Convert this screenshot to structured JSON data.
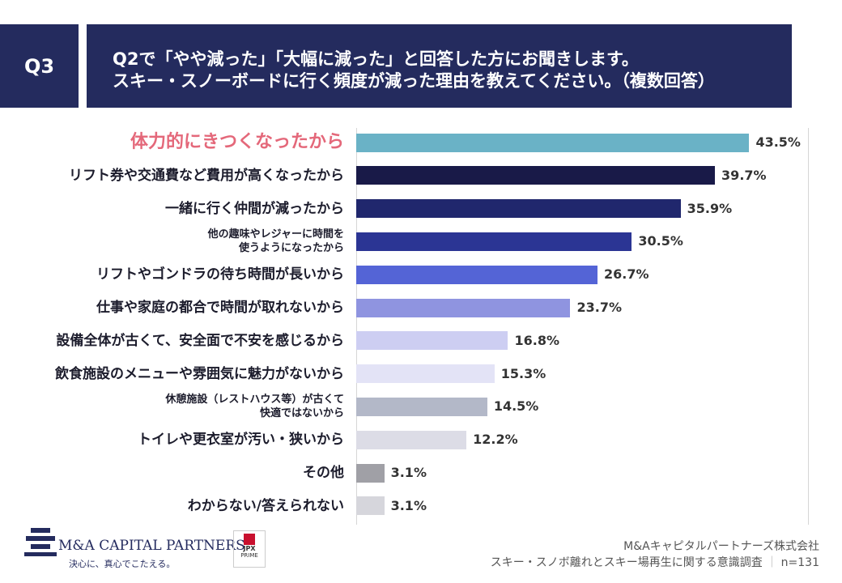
{
  "header": {
    "q": "Q3",
    "question": "Q2で「やや減った」「大幅に減った」と回答した方にお聞きします。\nスキー・スノーボードに行く頻度が減った理由を教えてください。（複数回答）"
  },
  "chart_data": {
    "type": "bar",
    "orientation": "horizontal",
    "categories": [
      "体力的にきつくなったから",
      "リフト券や交通費など費用が高くなったから",
      "一緒に行く仲間が減ったから",
      "他の趣味やレジャーに時間を\n使うようになったから",
      "リフトやゴンドラの待ち時間が長いから",
      "仕事や家庭の都合で時間が取れないから",
      "設備全体が古くて、安全面で不安を感じるから",
      "飲食施設のメニューや雰囲気に魅力がないから",
      "休憩施設（レストハウス等）が古くて\n快適ではないから",
      "トイレや更衣室が汚い・狭いから",
      "その他",
      "わからない/答えられない"
    ],
    "values": [
      43.5,
      39.7,
      35.9,
      30.5,
      26.7,
      23.7,
      16.8,
      15.3,
      14.5,
      12.2,
      3.1,
      3.1
    ],
    "value_labels": [
      "43.5%",
      "39.7%",
      "35.9%",
      "30.5%",
      "26.7%",
      "23.7%",
      "16.8%",
      "15.3%",
      "14.5%",
      "12.2%",
      "3.1%",
      "3.1%"
    ],
    "colors": [
      "#6ab2c6",
      "#191a48",
      "#20276d",
      "#2b3594",
      "#5464d6",
      "#8f94e0",
      "#cdcef2",
      "#e3e3f6",
      "#b3b8c8",
      "#dcdce6",
      "#a0a0a6",
      "#d6d6dc"
    ],
    "highlight_color": "#e4687a",
    "xlim": [
      0,
      50
    ]
  },
  "footer": {
    "logo": "M&A CAPITAL PARTNERS",
    "tagline": "決心に、真心でこたえる。",
    "jpx": "JPX",
    "prime": "PRIME",
    "company": "M&Aキャピタルパートナーズ株式会社",
    "survey": "スキー・スノボ離れとスキー場再生に関する意識調査",
    "n": "n=131"
  }
}
